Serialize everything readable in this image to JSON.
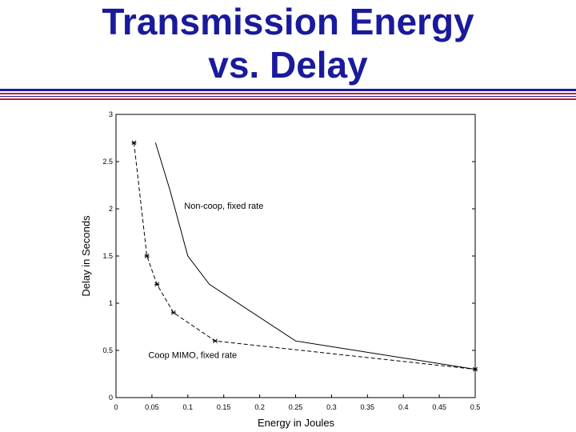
{
  "slide": {
    "title_line1": "Transmission Energy",
    "title_line2": "vs. Delay",
    "title_color": "#1a1a9c",
    "rule_colors": [
      "#1a1a9c",
      "#c0202a"
    ]
  },
  "chart_data": {
    "type": "line",
    "title": "",
    "xlabel": "Energy in Joules",
    "ylabel": "Delay in Seconds",
    "xlim": [
      0,
      0.5
    ],
    "ylim": [
      0,
      3
    ],
    "xticks": [
      0,
      0.05,
      0.1,
      0.15,
      0.2,
      0.25,
      0.3,
      0.35,
      0.4,
      0.45,
      0.5
    ],
    "xtick_labels": [
      "0",
      "0.05",
      "0.1",
      "0.15",
      "0.2",
      "0.25",
      "0.3",
      "0.35",
      "0.4",
      "0.45",
      "0.5"
    ],
    "yticks": [
      0,
      0.5,
      1,
      1.5,
      2,
      2.5,
      3
    ],
    "ytick_labels": [
      "0",
      "0.5",
      "1",
      "1.5",
      "2",
      "2.5",
      "3"
    ],
    "grid": false,
    "series": [
      {
        "name": "Non-coop, fixed rate",
        "style": "solid",
        "x": [
          0.055,
          0.075,
          0.1,
          0.13,
          0.25,
          0.5
        ],
        "y": [
          2.7,
          2.2,
          1.5,
          1.2,
          0.6,
          0.3
        ]
      },
      {
        "name": "Coop MIMO, fixed rate",
        "style": "dashed",
        "x": [
          0.025,
          0.043,
          0.057,
          0.08,
          0.138,
          0.5
        ],
        "y": [
          2.7,
          1.5,
          1.2,
          0.9,
          0.6,
          0.3
        ]
      }
    ],
    "annotations": [
      {
        "text": "Non-coop, fixed rate",
        "x": 0.095,
        "y": 2.0
      },
      {
        "text": "Coop MIMO, fixed rate",
        "x": 0.045,
        "y": 0.42
      }
    ]
  }
}
